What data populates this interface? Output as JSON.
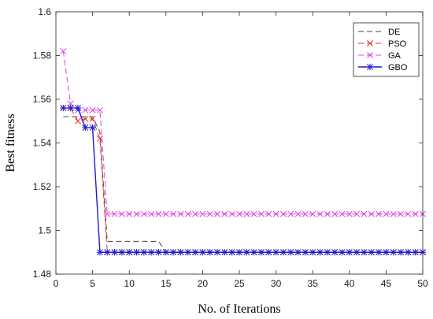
{
  "chart_data": {
    "type": "line",
    "title": "",
    "xlabel": "No. of Iterations",
    "ylabel": "Best fitness",
    "xlim": [
      0,
      50
    ],
    "ylim": [
      1.48,
      1.6
    ],
    "xticks": [
      0,
      5,
      10,
      15,
      20,
      25,
      30,
      35,
      40,
      45,
      50
    ],
    "yticks": [
      1.48,
      1.5,
      1.52,
      1.54,
      1.56,
      1.58,
      1.6
    ],
    "xtick_labels": [
      "0",
      "5",
      "10",
      "15",
      "20",
      "25",
      "30",
      "35",
      "40",
      "45",
      "50"
    ],
    "ytick_labels": [
      "1.48",
      "1.5",
      "1.52",
      "1.54",
      "1.56",
      "1.58",
      "1.6"
    ],
    "grid": false,
    "legend": "top-right",
    "x": [
      1,
      2,
      3,
      4,
      5,
      6,
      7,
      8,
      9,
      10,
      11,
      12,
      13,
      14,
      15,
      16,
      17,
      18,
      19,
      20,
      21,
      22,
      23,
      24,
      25,
      26,
      27,
      28,
      29,
      30,
      31,
      32,
      33,
      34,
      35,
      36,
      37,
      38,
      39,
      40,
      41,
      42,
      43,
      44,
      45,
      46,
      47,
      48,
      49,
      50
    ],
    "series": [
      {
        "name": "DE",
        "color": "#404040",
        "dash": "dashed",
        "marker": "none",
        "values": [
          1.552,
          1.552,
          1.552,
          1.552,
          1.552,
          1.545,
          1.495,
          1.495,
          1.495,
          1.495,
          1.495,
          1.495,
          1.495,
          1.495,
          1.49,
          1.49,
          1.49,
          1.49,
          1.49,
          1.49,
          1.49,
          1.49,
          1.49,
          1.49,
          1.49,
          1.49,
          1.49,
          1.49,
          1.49,
          1.49,
          1.49,
          1.49,
          1.49,
          1.49,
          1.49,
          1.49,
          1.49,
          1.49,
          1.49,
          1.49,
          1.49,
          1.49,
          1.49,
          1.49,
          1.49,
          1.49,
          1.49,
          1.49,
          1.49,
          1.49
        ]
      },
      {
        "name": "PSO",
        "color": "#e8302a",
        "dash": "dashed",
        "marker": "x",
        "values": [
          1.556,
          1.556,
          1.55,
          1.551,
          1.551,
          1.542,
          1.49,
          1.49,
          1.49,
          1.49,
          1.49,
          1.49,
          1.49,
          1.49,
          1.49,
          1.49,
          1.49,
          1.49,
          1.49,
          1.49,
          1.49,
          1.49,
          1.49,
          1.49,
          1.49,
          1.49,
          1.49,
          1.49,
          1.49,
          1.49,
          1.49,
          1.49,
          1.49,
          1.49,
          1.49,
          1.49,
          1.49,
          1.49,
          1.49,
          1.49,
          1.49,
          1.49,
          1.49,
          1.49,
          1.49,
          1.49,
          1.49,
          1.49,
          1.49,
          1.49
        ]
      },
      {
        "name": "GA",
        "color": "#e040e0",
        "dash": "dashed",
        "marker": "x",
        "values": [
          1.582,
          1.558,
          1.555,
          1.555,
          1.555,
          1.555,
          1.5075,
          1.5075,
          1.5075,
          1.5075,
          1.5075,
          1.5075,
          1.5075,
          1.5075,
          1.5075,
          1.5075,
          1.5075,
          1.5075,
          1.5075,
          1.5075,
          1.5075,
          1.5075,
          1.5075,
          1.5075,
          1.5075,
          1.5075,
          1.5075,
          1.5075,
          1.5075,
          1.5075,
          1.5075,
          1.5075,
          1.5075,
          1.5075,
          1.5075,
          1.5075,
          1.5075,
          1.5075,
          1.5075,
          1.5075,
          1.5075,
          1.5075,
          1.5075,
          1.5075,
          1.5075,
          1.5075,
          1.5075,
          1.5075,
          1.5075,
          1.5075
        ]
      },
      {
        "name": "GBO",
        "color": "#1a1acc",
        "dash": "solid",
        "marker": "asterisk",
        "values": [
          1.556,
          1.556,
          1.556,
          1.547,
          1.547,
          1.49,
          1.49,
          1.49,
          1.49,
          1.49,
          1.49,
          1.49,
          1.49,
          1.49,
          1.49,
          1.49,
          1.49,
          1.49,
          1.49,
          1.49,
          1.49,
          1.49,
          1.49,
          1.49,
          1.49,
          1.49,
          1.49,
          1.49,
          1.49,
          1.49,
          1.49,
          1.49,
          1.49,
          1.49,
          1.49,
          1.49,
          1.49,
          1.49,
          1.49,
          1.49,
          1.49,
          1.49,
          1.49,
          1.49,
          1.49,
          1.49,
          1.49,
          1.49,
          1.49,
          1.49
        ]
      }
    ]
  }
}
